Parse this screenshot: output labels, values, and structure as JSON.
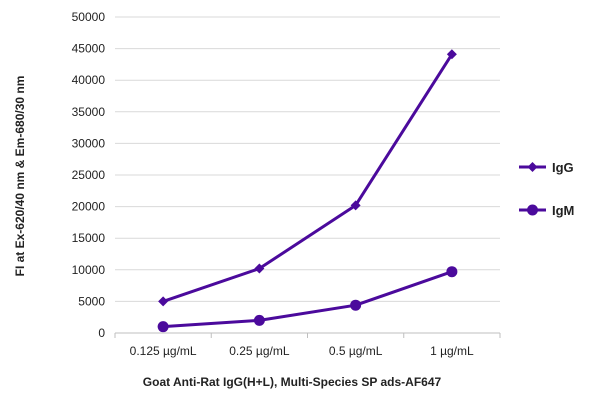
{
  "chart_data": {
    "type": "line",
    "title": "",
    "xlabel": "Goat Anti-Rat IgG(H+L), Multi-Species SP ads-AF647",
    "ylabel": "FI at Ex-620/40 nm & Em-680/30 nm",
    "categories": [
      "0.125 µg/mL",
      "0.25 µg/mL",
      "0.5 µg/mL",
      "1 µg/mL"
    ],
    "ylim": [
      0,
      50000
    ],
    "yticks": [
      0,
      5000,
      10000,
      15000,
      20000,
      25000,
      30000,
      35000,
      40000,
      45000,
      50000
    ],
    "grid": "horizontal",
    "legend_position": "right",
    "series": [
      {
        "name": "IgG",
        "marker": "diamond",
        "color": "#4B0A9C",
        "values": [
          5000,
          10200,
          20200,
          44100
        ]
      },
      {
        "name": "IgM",
        "marker": "circle",
        "color": "#4B0A9C",
        "values": [
          1000,
          2000,
          4400,
          9700
        ]
      }
    ]
  }
}
